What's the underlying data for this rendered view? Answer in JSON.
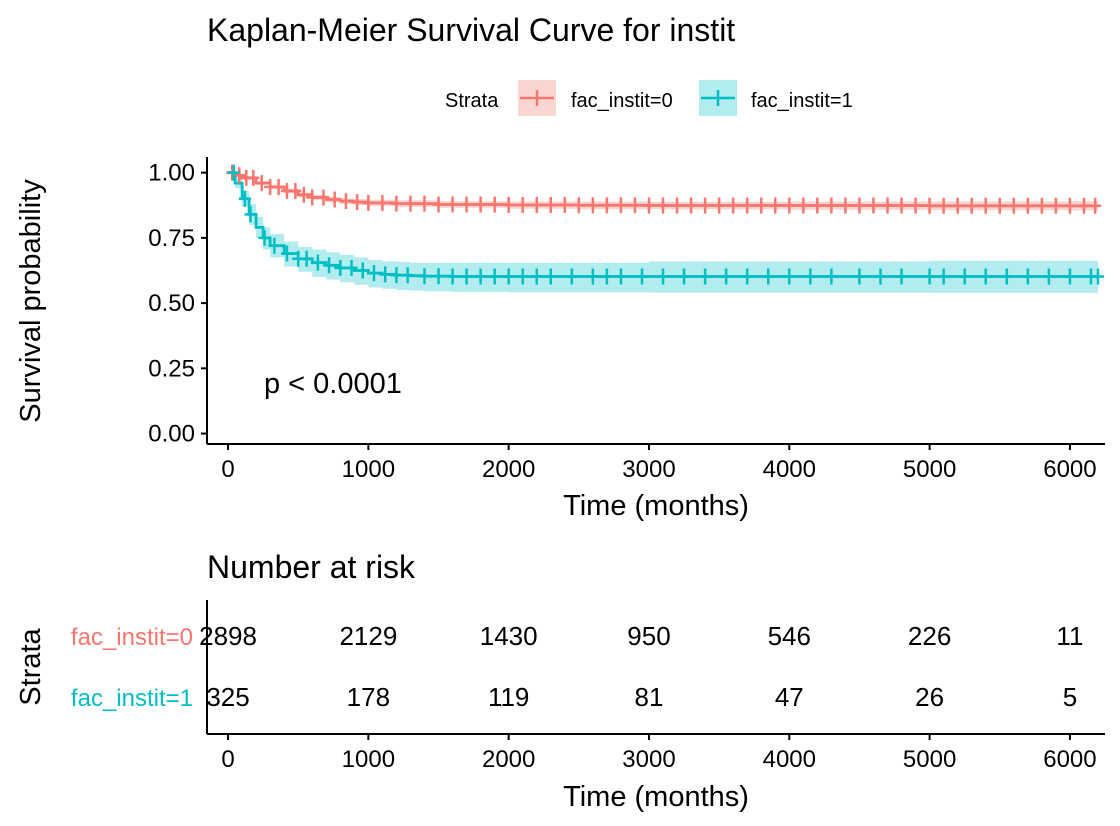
{
  "colors": {
    "stratum0": "#F8766D",
    "stratum1": "#00BFC4",
    "ci0": "#FBD5D2",
    "ci1": "#B3ECEE"
  },
  "chart_data": [
    {
      "type": "line",
      "title": "Kaplan-Meier Survival Curve for instit",
      "xlabel": "Time (months)",
      "ylabel": "Survival probability",
      "xlim": [
        -150,
        6250
      ],
      "ylim": [
        -0.04,
        1.06
      ],
      "x_ticks": [
        "0",
        "1000",
        "2000",
        "3000",
        "4000",
        "5000",
        "6000"
      ],
      "x_tick_values": [
        0,
        1000,
        2000,
        3000,
        4000,
        5000,
        6000
      ],
      "y_ticks": [
        "0.00",
        "0.25",
        "0.50",
        "0.75",
        "1.00"
      ],
      "y_tick_values": [
        0,
        0.25,
        0.5,
        0.75,
        1.0
      ],
      "legend": {
        "title": "Strata",
        "position": "top",
        "labels": [
          "fac_instit=0",
          "fac_instit=1"
        ]
      },
      "annotation": "p < 0.0001",
      "grid": false,
      "series": [
        {
          "name": "fac_instit=0",
          "color": "#F8766D",
          "x": [
            0,
            50,
            100,
            200,
            300,
            400,
            500,
            600,
            700,
            800,
            900,
            1000,
            1200,
            1500,
            2000,
            2500,
            3000,
            4000,
            5000,
            6000,
            6200
          ],
          "y": [
            1.0,
            0.99,
            0.98,
            0.96,
            0.945,
            0.93,
            0.915,
            0.905,
            0.897,
            0.891,
            0.887,
            0.884,
            0.881,
            0.878,
            0.876,
            0.875,
            0.874,
            0.874,
            0.873,
            0.873,
            0.873
          ],
          "ci_lower": [
            1.0,
            0.985,
            0.973,
            0.953,
            0.937,
            0.921,
            0.906,
            0.895,
            0.886,
            0.88,
            0.875,
            0.872,
            0.868,
            0.865,
            0.862,
            0.86,
            0.859,
            0.858,
            0.856,
            0.855,
            0.855
          ],
          "ci_upper": [
            1.0,
            0.995,
            0.987,
            0.967,
            0.953,
            0.939,
            0.924,
            0.915,
            0.908,
            0.902,
            0.899,
            0.896,
            0.894,
            0.891,
            0.89,
            0.89,
            0.889,
            0.89,
            0.89,
            0.891,
            0.891
          ],
          "censor_x": [
            30,
            80,
            130,
            180,
            240,
            300,
            360,
            420,
            480,
            540,
            600,
            680,
            760,
            840,
            920,
            1000,
            1100,
            1200,
            1300,
            1400,
            1500,
            1600,
            1700,
            1800,
            1900,
            2000,
            2100,
            2200,
            2300,
            2400,
            2500,
            2600,
            2700,
            2800,
            2900,
            3000,
            3100,
            3200,
            3300,
            3400,
            3500,
            3600,
            3700,
            3800,
            3900,
            4000,
            4100,
            4200,
            4300,
            4400,
            4500,
            4600,
            4700,
            4800,
            4900,
            5000,
            5100,
            5200,
            5300,
            5400,
            5500,
            5600,
            5700,
            5800,
            5900,
            6000,
            6100,
            6180
          ]
        },
        {
          "name": "fac_instit=1",
          "color": "#00BFC4",
          "x": [
            0,
            50,
            100,
            150,
            200,
            250,
            300,
            400,
            500,
            600,
            700,
            800,
            900,
            1000,
            1100,
            1200,
            1300,
            1400,
            1600,
            2000,
            3000,
            4000,
            5000,
            6200
          ],
          "y": [
            1.0,
            0.96,
            0.9,
            0.84,
            0.79,
            0.75,
            0.72,
            0.69,
            0.67,
            0.655,
            0.645,
            0.635,
            0.625,
            0.615,
            0.61,
            0.607,
            0.605,
            0.603,
            0.602,
            0.602,
            0.602,
            0.602,
            0.602,
            0.602
          ],
          "ci_lower": [
            1.0,
            0.94,
            0.87,
            0.8,
            0.75,
            0.705,
            0.675,
            0.64,
            0.62,
            0.6,
            0.59,
            0.58,
            0.57,
            0.56,
            0.555,
            0.55,
            0.548,
            0.545,
            0.543,
            0.542,
            0.54,
            0.54,
            0.539,
            0.538
          ],
          "ci_upper": [
            1.0,
            0.98,
            0.93,
            0.88,
            0.83,
            0.79,
            0.765,
            0.735,
            0.715,
            0.705,
            0.695,
            0.685,
            0.675,
            0.665,
            0.66,
            0.658,
            0.655,
            0.655,
            0.655,
            0.655,
            0.66,
            0.66,
            0.662,
            0.664
          ],
          "censor_x": [
            40,
            120,
            160,
            260,
            330,
            420,
            500,
            560,
            640,
            720,
            800,
            880,
            960,
            1040,
            1120,
            1200,
            1280,
            1400,
            1500,
            1600,
            1700,
            1800,
            1900,
            2000,
            2100,
            2200,
            2300,
            2450,
            2600,
            2700,
            2800,
            2950,
            3100,
            3250,
            3400,
            3550,
            3700,
            3850,
            4000,
            4150,
            4300,
            4500,
            4650,
            4800,
            5000,
            5100,
            5250,
            5400,
            5550,
            5700,
            5850,
            6000,
            6150,
            6200
          ]
        }
      ]
    },
    {
      "type": "table",
      "title": "Number at risk",
      "xlabel": "Time (months)",
      "ylabel": "Strata",
      "x_ticks": [
        "0",
        "1000",
        "2000",
        "3000",
        "4000",
        "5000",
        "6000"
      ],
      "x_tick_values": [
        0,
        1000,
        2000,
        3000,
        4000,
        5000,
        6000
      ],
      "rows": [
        {
          "label": "fac_instit=0",
          "color": "#F8766D",
          "values": [
            "2898",
            "2129",
            "1430",
            "950",
            "546",
            "226",
            "11"
          ]
        },
        {
          "label": "fac_instit=1",
          "color": "#00BFC4",
          "values": [
            "325",
            "178",
            "119",
            "81",
            "47",
            "26",
            "5"
          ]
        }
      ]
    }
  ]
}
